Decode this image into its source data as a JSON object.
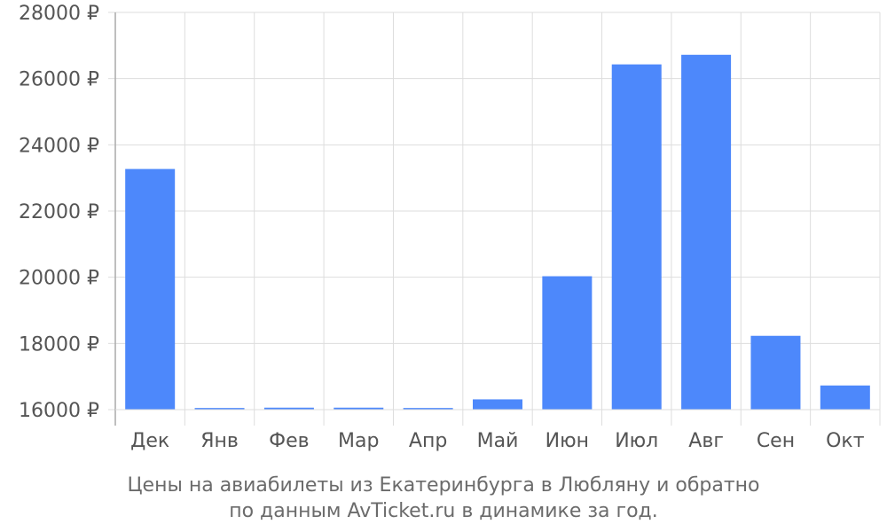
{
  "chart_data": {
    "type": "bar",
    "categories": [
      "Дек",
      "Янв",
      "Фев",
      "Мар",
      "Апр",
      "Май",
      "Июн",
      "Июл",
      "Авг",
      "Сен",
      "Окт"
    ],
    "values": [
      23270,
      16050,
      16060,
      16060,
      16050,
      16310,
      20030,
      26430,
      26720,
      18230,
      16730
    ],
    "ylim": [
      16000,
      28000
    ],
    "yticks": [
      16000,
      18000,
      20000,
      22000,
      24000,
      26000,
      28000
    ],
    "ytick_suffix": " ₽",
    "grid": true,
    "bar_color": "#4d88fb",
    "grid_color": "#dddddd",
    "axis_color": "#aaaaaa",
    "caption_lines": [
      "Цены на авиабилеты из Екатеринбурга в Любляну и обратно",
      "по данным AvTicket.ru в динамике за год."
    ]
  }
}
